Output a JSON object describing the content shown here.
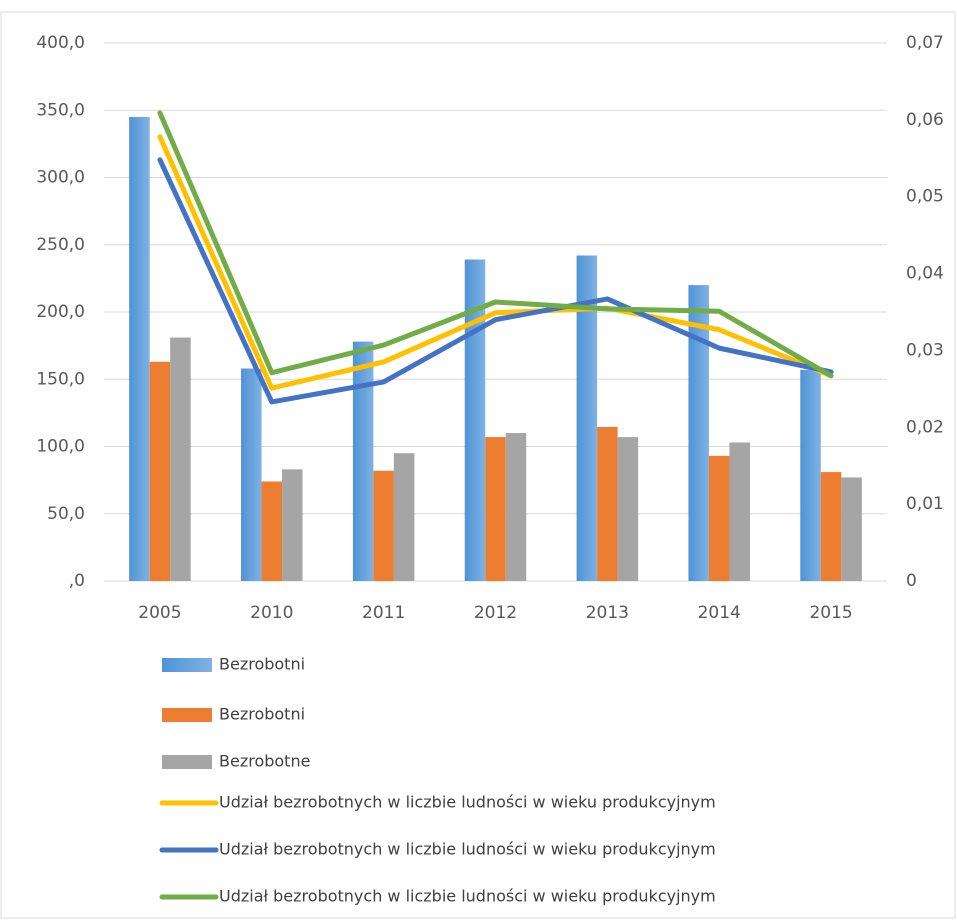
{
  "chart_data": {
    "type": "bar",
    "categories": [
      "2005",
      "2010",
      "2011",
      "2012",
      "2013",
      "2014",
      "2015"
    ],
    "series": [
      {
        "name": "Bezrobotni",
        "type": "bar",
        "color": "#5b9bd5",
        "values": [
          345,
          158,
          178,
          239,
          242,
          220,
          157
        ]
      },
      {
        "name": "Bezrobotni",
        "type": "bar",
        "color": "#ed7d31",
        "values": [
          163,
          74,
          82,
          107,
          114.5,
          93,
          81
        ]
      },
      {
        "name": "Bezrobotne",
        "type": "bar",
        "color": "#a5a5a5",
        "values": [
          181,
          83,
          95,
          110,
          107,
          103,
          77
        ]
      },
      {
        "name": "Udział bezrobotnych w liczbie ludności w wieku produkcyjnym",
        "type": "line",
        "axis": "y2",
        "color": "#ffc000",
        "values": [
          0.0578,
          0.0251,
          0.0285,
          0.0349,
          0.0355,
          0.0327,
          0.0267
        ]
      },
      {
        "name": "Udział bezrobotnych w liczbie ludności w wieku produkcyjnym",
        "type": "line",
        "axis": "y2",
        "color": "#4472c4",
        "values": [
          0.0548,
          0.0233,
          0.0259,
          0.034,
          0.0367,
          0.0303,
          0.0272
        ]
      },
      {
        "name": "Udział bezrobotnych w liczbie ludności w wieku produkcyjnym",
        "type": "line",
        "axis": "y2",
        "color": "#70ad47",
        "values": [
          0.0609,
          0.0271,
          0.0307,
          0.0363,
          0.0354,
          0.0351,
          0.0267
        ]
      }
    ],
    "ylim": [
      0,
      400
    ],
    "yticks": [
      {
        "value": 0,
        "label": ",0"
      },
      {
        "value": 50,
        "label": "50,0"
      },
      {
        "value": 100,
        "label": "100,0"
      },
      {
        "value": 150,
        "label": "150,0"
      },
      {
        "value": 200,
        "label": "200,0"
      },
      {
        "value": 250,
        "label": "250,0"
      },
      {
        "value": 300,
        "label": "300,0"
      },
      {
        "value": 350,
        "label": "350,0"
      },
      {
        "value": 400,
        "label": "400,0"
      }
    ],
    "y2lim": [
      0,
      0.07
    ],
    "y2ticks": [
      0,
      {
        "value": 0.01,
        "label": "0,01"
      },
      {
        "value": 0.02,
        "label": "0,02"
      },
      {
        "value": 0.03,
        "label": "0,03"
      },
      {
        "value": 0.04,
        "label": "0,04"
      },
      {
        "value": 0.05,
        "label": "0,05"
      },
      {
        "value": 0.06,
        "label": "0,06"
      },
      {
        "value": 0.07,
        "label": "0,07"
      }
    ],
    "grid": true,
    "legend": "bottom"
  }
}
